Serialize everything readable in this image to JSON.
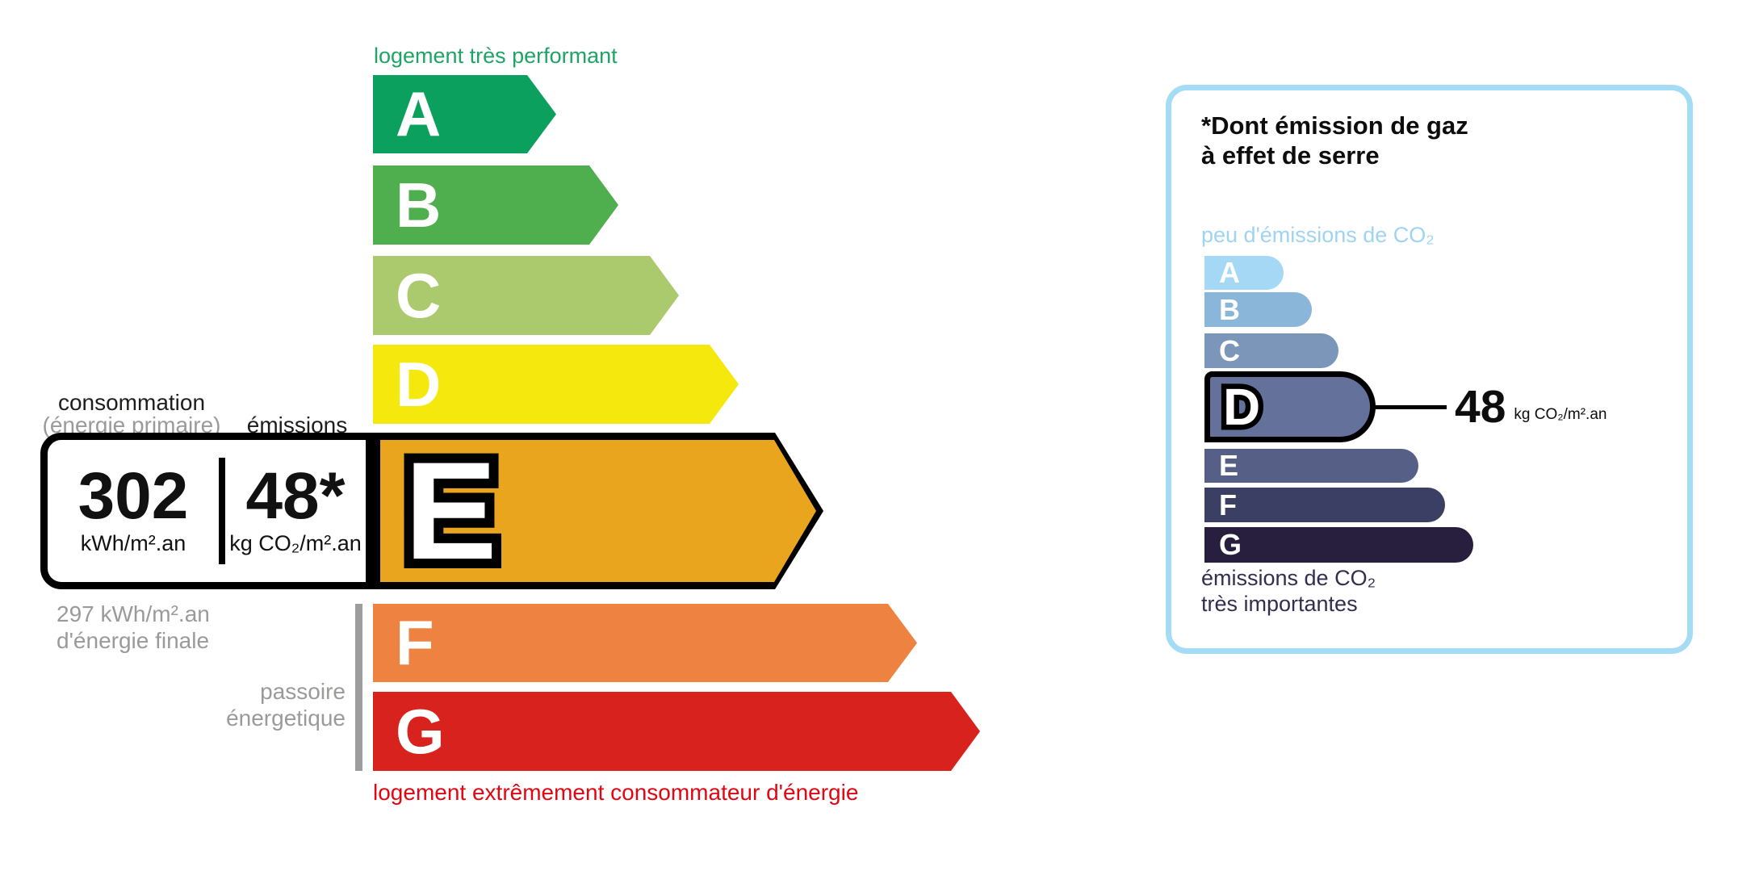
{
  "energy_scale": {
    "top_label": "logement très performant",
    "bottom_label": "logement extrêmement consommateur d'énergie",
    "top_label_color": "#1fa466",
    "bottom_label_color": "#e20613",
    "highlighted": "E",
    "classes": [
      {
        "letter": "A",
        "color": "#0ca05f"
      },
      {
        "letter": "B",
        "color": "#4fae4e"
      },
      {
        "letter": "C",
        "color": "#aaca6d"
      },
      {
        "letter": "D",
        "color": "#f4e80c"
      },
      {
        "letter": "E",
        "color": "#e9a51d"
      },
      {
        "letter": "F",
        "color": "#ee8240"
      },
      {
        "letter": "G",
        "color": "#d8221e"
      }
    ]
  },
  "performance_box": {
    "consumption_label": "consommation",
    "consumption_sublabel": "(énergie primaire)",
    "emissions_label": "émissions",
    "consumption_value": "302",
    "consumption_unit": "kWh/m².an",
    "emissions_value": "48*",
    "emissions_unit": "kg CO₂/m².an",
    "final_energy_value": "297 kWh/m².an",
    "final_energy_label": "d'énergie finale",
    "energy_sieve_line1": "passoire",
    "energy_sieve_line2": "énergetique"
  },
  "ges_panel": {
    "title_line1": "*Dont émission de gaz",
    "title_line2": "à effet de serre",
    "top_label": "peu d'émissions de CO₂",
    "bottom_label_line1": "émissions de CO₂",
    "bottom_label_line2": "très importantes",
    "value": "48",
    "value_unit": "kg CO₂/m².an",
    "border_color": "#a5dcf5",
    "highlighted": "D",
    "classes": [
      {
        "letter": "A",
        "color": "#a4d8f4"
      },
      {
        "letter": "B",
        "color": "#8ab6d9"
      },
      {
        "letter": "C",
        "color": "#7b96b9"
      },
      {
        "letter": "D",
        "color": "#64729b"
      },
      {
        "letter": "E",
        "color": "#565f86"
      },
      {
        "letter": "F",
        "color": "#3b3f63"
      },
      {
        "letter": "G",
        "color": "#271f3d"
      }
    ]
  }
}
